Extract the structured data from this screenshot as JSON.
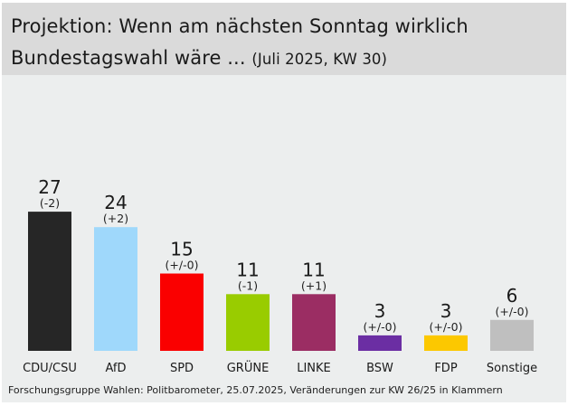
{
  "header": {
    "title_line1": "Projektion: Wenn am nächsten Sonntag wirklich",
    "title_line2": "Bundestagswahl wäre ...",
    "subtitle": "(Juli 2025, KW 30)"
  },
  "chart_data": {
    "type": "bar",
    "title": "Projektion: Wenn am nächsten Sonntag wirklich Bundestagswahl wäre ... (Juli 2025, KW 30)",
    "xlabel": "",
    "ylabel": "",
    "unit": "%",
    "grid": false,
    "categories": [
      "CDU/CSU",
      "AfD",
      "SPD",
      "GRÜNE",
      "LINKE",
      "BSW",
      "FDP",
      "Sonstige"
    ],
    "values": [
      27,
      24,
      15,
      11,
      11,
      3,
      3,
      6
    ],
    "changes": [
      "(-2)",
      "(+2)",
      "(+/-0)",
      "(-1)",
      "(+1)",
      "(+/-0)",
      "(+/-0)",
      "(+/-0)"
    ],
    "colors": [
      "#262626",
      "#9fd8fb",
      "#fa0000",
      "#99cc00",
      "#9b2d63",
      "#6b2ea3",
      "#fcc800",
      "#bfbfbf"
    ],
    "ylim": [
      0,
      30
    ]
  },
  "footer": {
    "source": "Forschungsgruppe Wahlen: Politbarometer, 25.07.2025, Veränderungen zur KW 26/25 in Klammern"
  }
}
